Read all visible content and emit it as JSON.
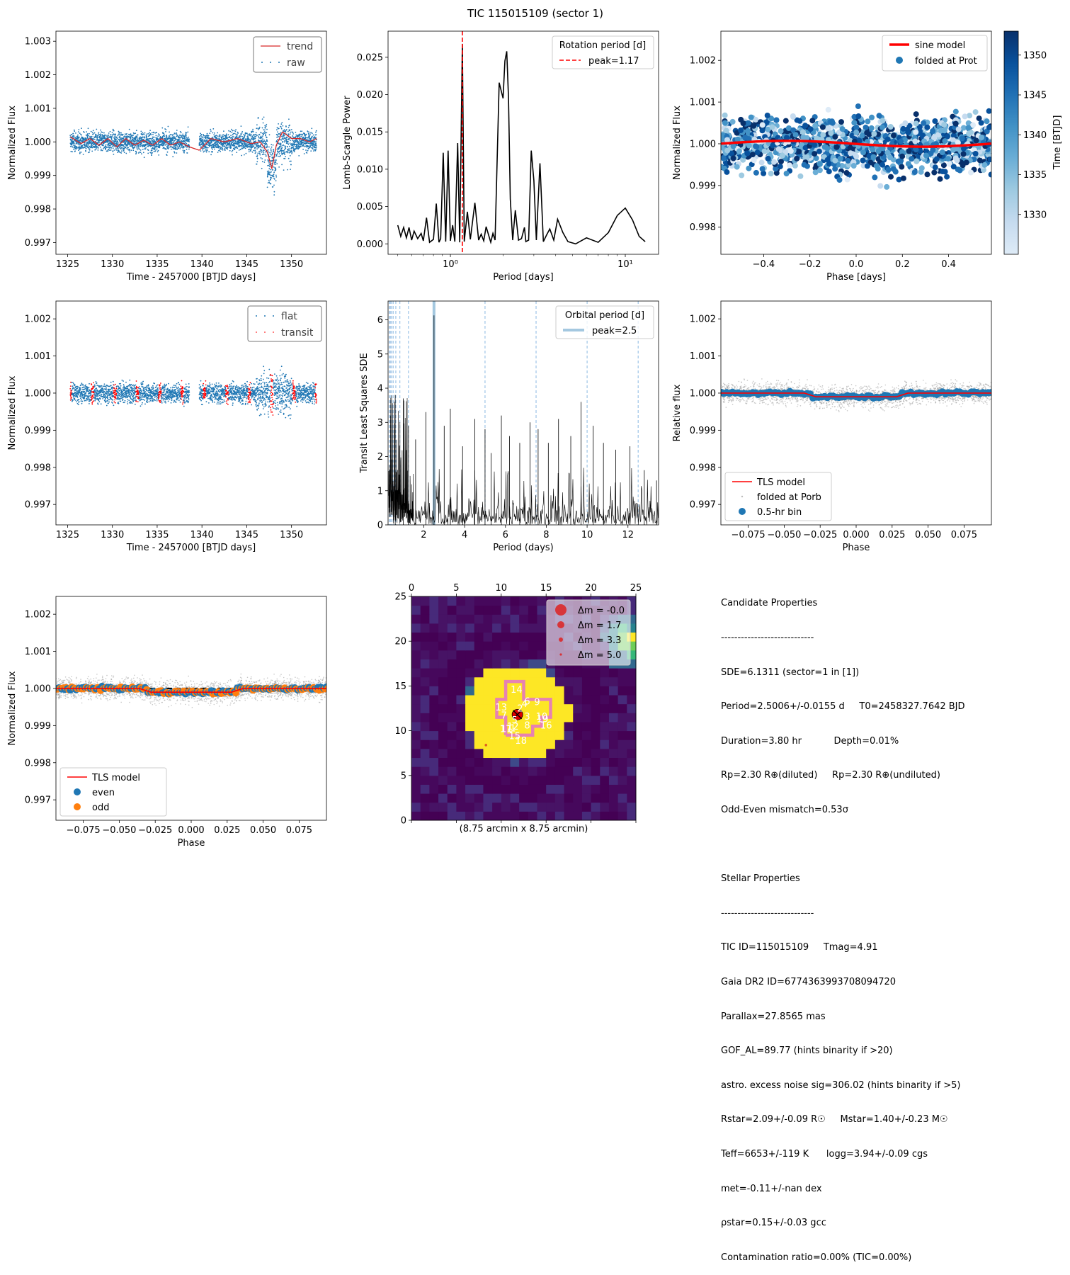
{
  "title": "TIC 115015109 (sector 1)",
  "chart_data": [
    {
      "id": "p1",
      "type": "scatter",
      "xlabel": "Time - 2457000 [BTJD days]",
      "ylabel": "Normalized Flux",
      "xlim": [
        1323.7,
        1353.9
      ],
      "ylim": [
        0.99665,
        1.0033
      ],
      "xticks": [
        1325,
        1330,
        1335,
        1340,
        1345,
        1350
      ],
      "yticks": [
        "0.997",
        "0.998",
        "0.999",
        "1.000",
        "1.001",
        "1.002",
        "1.003"
      ],
      "legend": {
        "position": "top-right",
        "items": [
          "trend",
          "raw"
        ]
      },
      "segments": [
        [
          1325.3,
          1338.6
        ],
        [
          1339.7,
          1352.8
        ]
      ],
      "series": [
        {
          "name": "raw",
          "color": "#1f77b4",
          "scatter": 0.00045
        },
        {
          "name": "trend",
          "color": "#d62728",
          "x": [
            1325.3,
            1326.5,
            1327.5,
            1328.5,
            1329.5,
            1330.5,
            1331.5,
            1332.5,
            1333.5,
            1334.5,
            1335.5,
            1336.5,
            1337.5,
            1338.6,
            1339.7,
            1341.0,
            1342.5,
            1344.0,
            1345.5,
            1346.5,
            1347.3,
            1347.8,
            1348.3,
            1349.0,
            1350.0,
            1351.0,
            1352.0,
            1352.8
          ],
          "y": [
            1.00015,
            0.99995,
            1.0001,
            0.9999,
            1.0001,
            0.99985,
            1.0001,
            0.9999,
            1.00005,
            0.9999,
            1.0001,
            0.9999,
            1.0,
            0.99985,
            0.99975,
            1.0001,
            1.0,
            1.0001,
            0.99995,
            1.0,
            0.9997,
            0.9992,
            0.9999,
            1.0003,
            1.0001,
            1.0001,
            1.0,
            1.0001
          ]
        }
      ]
    },
    {
      "id": "p2",
      "type": "line",
      "xlabel": "Period [days]",
      "ylabel": "Lomb-Scargle Power",
      "xscale": "log",
      "xlim": [
        0.44,
        15.5
      ],
      "ylim": [
        -0.0014,
        0.0285
      ],
      "xticks": [
        {
          "v": 1,
          "label": "10⁰"
        },
        {
          "v": 10,
          "label": "10¹"
        }
      ],
      "yticks": [
        "0.000",
        "0.005",
        "0.010",
        "0.015",
        "0.020",
        "0.025"
      ],
      "legend": {
        "position": "top-right",
        "title": "Rotation period [d]",
        "items": [
          "peak=1.17"
        ]
      },
      "peak": 1.17,
      "series": [
        {
          "name": "power",
          "color": "#000000",
          "x": [
            0.5,
            0.52,
            0.54,
            0.56,
            0.58,
            0.6,
            0.62,
            0.65,
            0.68,
            0.7,
            0.73,
            0.76,
            0.8,
            0.83,
            0.86,
            0.88,
            0.91,
            0.94,
            0.97,
            1.0,
            1.03,
            1.06,
            1.1,
            1.13,
            1.17,
            1.2,
            1.25,
            1.3,
            1.38,
            1.45,
            1.5,
            1.55,
            1.6,
            1.7,
            1.75,
            1.8,
            1.9,
            2.0,
            2.05,
            2.1,
            2.15,
            2.2,
            2.27,
            2.35,
            2.45,
            2.55,
            2.65,
            2.7,
            2.8,
            2.9,
            3.0,
            3.1,
            3.25,
            3.4,
            3.55,
            3.7,
            3.9,
            4.1,
            4.4,
            4.7,
            5.2,
            6.0,
            7.0,
            8.0,
            9.0,
            10.0,
            11.0,
            12.0,
            13.0
          ],
          "y": [
            0.0025,
            0.001,
            0.0022,
            0.0008,
            0.0022,
            0.0005,
            0.0017,
            0.0007,
            0.0014,
            0.0004,
            0.0035,
            0.0002,
            0.0006,
            0.0054,
            0.0002,
            0.0007,
            0.0122,
            0.0003,
            0.0125,
            0.0004,
            0.0025,
            0.0003,
            0.0135,
            0.0002,
            0.0268,
            0.0003,
            0.0043,
            0.0006,
            0.0055,
            0.0005,
            0.0013,
            0.0004,
            0.0023,
            0.0002,
            0.0014,
            0.0005,
            0.0216,
            0.0195,
            0.0245,
            0.0258,
            0.0195,
            0.006,
            0.0005,
            0.0045,
            0.0005,
            0.0007,
            0.0022,
            0.0003,
            0.0005,
            0.0125,
            0.0085,
            0.0005,
            0.0108,
            0.0003,
            0.0012,
            0.002,
            0.0005,
            0.0033,
            0.0015,
            0.0003,
            0.0,
            0.0008,
            0.0002,
            0.0015,
            0.0038,
            0.0048,
            0.0032,
            0.001,
            0.0003
          ]
        }
      ]
    },
    {
      "id": "p3",
      "type": "scatter",
      "xlabel": "Phase [days]",
      "ylabel": "Normalized Flux",
      "xlim": [
        -0.585,
        0.585
      ],
      "ylim": [
        0.99735,
        1.0027
      ],
      "xticks": [
        {
          "v": -0.4,
          "label": "−0.4"
        },
        {
          "v": -0.2,
          "label": "−0.2"
        },
        {
          "v": 0.0,
          "label": "0.0"
        },
        {
          "v": 0.2,
          "label": "0.2"
        },
        {
          "v": 0.4,
          "label": "0.4"
        }
      ],
      "yticks": [
        "0.998",
        "0.999",
        "1.000",
        "1.001",
        "1.002"
      ],
      "legend": {
        "position": "top-right",
        "items": [
          "sine model",
          "folded at Prot"
        ]
      },
      "colorbar": {
        "label": "Time [BTJD]",
        "range": [
          1325,
          1353
        ],
        "ticks": [
          "1330",
          "1335",
          "1340",
          "1345",
          "1350"
        ],
        "cmap": "Blues"
      },
      "series": [
        {
          "name": "folded at Prot",
          "color": "#08306b"
        },
        {
          "name": "sine model",
          "color": "#ff0000",
          "amplitude": 7e-05
        }
      ]
    },
    {
      "id": "p4",
      "type": "scatter",
      "xlabel": "Time - 2457000 [BTJD days]",
      "ylabel": "Normalized Flux",
      "xlim": [
        1323.7,
        1353.9
      ],
      "ylim": [
        0.99645,
        1.00248
      ],
      "xticks": [
        1325,
        1330,
        1335,
        1340,
        1345,
        1350
      ],
      "yticks": [
        "0.997",
        "0.998",
        "0.999",
        "1.000",
        "1.001",
        "1.002"
      ],
      "legend": {
        "position": "top-right",
        "items": [
          "flat",
          "transit"
        ]
      },
      "transit_times": [
        1325.3,
        1327.8,
        1330.3,
        1332.8,
        1335.3,
        1337.8,
        1340.3,
        1342.8,
        1345.3,
        1347.8,
        1350.3,
        1352.8
      ],
      "series": [
        {
          "name": "flat",
          "color": "#1f77b4"
        },
        {
          "name": "transit",
          "color": "#ff0000"
        }
      ]
    },
    {
      "id": "p5",
      "type": "line",
      "xlabel": "Period (days)",
      "ylabel": "Transit Least Squares SDE",
      "xlim": [
        0.25,
        13.5
      ],
      "ylim": [
        0,
        6.55
      ],
      "xticks": [
        2,
        4,
        6,
        8,
        10,
        12
      ],
      "yticks": [
        0,
        1,
        2,
        3,
        4,
        5,
        6
      ],
      "legend": {
        "position": "top-right",
        "title": "Orbital period [d]",
        "items": [
          "peak=2.5"
        ]
      },
      "peak": 2.5,
      "peak_sde": 6.13,
      "harmonics": [
        0.31,
        0.36,
        0.42,
        0.5,
        0.63,
        0.83,
        1.25,
        5.0,
        7.5,
        10.0,
        12.5
      ],
      "spikes": {
        "x": [
          0.6,
          1.0,
          1.25,
          1.6,
          2.1,
          2.5,
          3.0,
          3.3,
          3.9,
          4.5,
          5.0,
          5.3,
          5.8,
          6.2,
          6.7,
          7.2,
          7.6,
          8.1,
          8.6,
          9.2,
          9.7,
          10.3,
          10.8,
          11.4,
          12.1,
          12.8,
          13.4
        ],
        "y": [
          3.8,
          3.7,
          2.9,
          2.5,
          3.3,
          6.13,
          2.9,
          3.4,
          2.3,
          3.1,
          2.8,
          2.1,
          3.2,
          2.6,
          2.4,
          3.0,
          2.8,
          2.4,
          3.1,
          2.6,
          3.6,
          2.9,
          2.4,
          2.2,
          2.3,
          1.6,
          1.3
        ]
      },
      "series": [
        {
          "name": "SDE",
          "color": "#000000"
        }
      ]
    },
    {
      "id": "p6",
      "type": "scatter",
      "xlabel": "Phase",
      "ylabel": "Relative flux",
      "xlim": [
        -0.094,
        0.094
      ],
      "ylim": [
        0.99645,
        1.00248
      ],
      "xticks": [
        {
          "v": -0.075,
          "label": "−0.075"
        },
        {
          "v": -0.05,
          "label": "−0.050"
        },
        {
          "v": -0.025,
          "label": "−0.025"
        },
        {
          "v": 0.0,
          "label": "0.000"
        },
        {
          "v": 0.025,
          "label": "0.025"
        },
        {
          "v": 0.05,
          "label": "0.050"
        },
        {
          "v": 0.075,
          "label": "0.075"
        }
      ],
      "yticks": [
        "0.997",
        "0.998",
        "0.999",
        "1.000",
        "1.001",
        "1.002"
      ],
      "legend": {
        "position": "bottom-left",
        "items": [
          "TLS model",
          "folded at Porb",
          "0.5-hr bin"
        ]
      },
      "transit": {
        "start": -0.032,
        "end": 0.032,
        "depth": 0.0001
      },
      "series": [
        {
          "name": "TLS model",
          "color": "#ff0000"
        },
        {
          "name": "folded at Porb",
          "color": "#7f7f7f"
        },
        {
          "name": "0.5-hr bin",
          "color": "#1f77b4"
        }
      ]
    },
    {
      "id": "p7",
      "type": "scatter",
      "xlabel": "Phase",
      "ylabel": "Normalized Flux",
      "xlim": [
        -0.094,
        0.094
      ],
      "ylim": [
        0.99645,
        1.00248
      ],
      "xticks": [
        {
          "v": -0.075,
          "label": "−0.075"
        },
        {
          "v": -0.05,
          "label": "−0.050"
        },
        {
          "v": -0.025,
          "label": "−0.025"
        },
        {
          "v": 0.0,
          "label": "0.000"
        },
        {
          "v": 0.025,
          "label": "0.025"
        },
        {
          "v": 0.05,
          "label": "0.050"
        },
        {
          "v": 0.075,
          "label": "0.075"
        }
      ],
      "yticks": [
        "0.997",
        "0.998",
        "0.999",
        "1.000",
        "1.001",
        "1.002"
      ],
      "legend": {
        "position": "bottom-left",
        "items": [
          "TLS model",
          "even",
          "odd"
        ]
      },
      "transit": {
        "start": -0.032,
        "end": 0.032,
        "depth": 0.0001
      },
      "series": [
        {
          "name": "TLS model",
          "color": "#ff0000"
        },
        {
          "name": "even",
          "color": "#1f77b4"
        },
        {
          "name": "odd",
          "color": "#ff7f0e"
        }
      ]
    },
    {
      "id": "p8",
      "type": "heatmap",
      "xlabel": "(8.75 arcmin x 8.75 arcmin)",
      "xlim": [
        0,
        25
      ],
      "ylim": [
        0,
        25
      ],
      "xticks": [
        0,
        5,
        10,
        15,
        20,
        25
      ],
      "yticks": [
        0,
        5,
        10,
        15,
        20,
        25
      ],
      "legend": {
        "position": "top-right",
        "items": [
          "Δm = -0.0",
          "Δm = 1.7",
          "Δm = 3.3",
          "Δm = 5.0"
        ]
      },
      "target": [
        11.8,
        11.8
      ],
      "stars": [
        {
          "label": "1",
          "x": 11.3,
          "y": 10.3
        },
        {
          "label": "2",
          "x": 12.1,
          "y": 12.5
        },
        {
          "label": "3",
          "x": 12.9,
          "y": 11.6
        },
        {
          "label": "4",
          "x": 12.6,
          "y": 13.0
        },
        {
          "label": "5",
          "x": 11.5,
          "y": 11.2
        },
        {
          "label": "6",
          "x": 12.9,
          "y": 13.3
        },
        {
          "label": "7",
          "x": 10.3,
          "y": 11.7
        },
        {
          "label": "8",
          "x": 12.9,
          "y": 10.6
        },
        {
          "label": "9",
          "x": 14.0,
          "y": 13.2
        },
        {
          "label": "10",
          "x": 14.5,
          "y": 11.6
        },
        {
          "label": "11",
          "x": 10.6,
          "y": 10.2
        },
        {
          "label": "12",
          "x": 11.3,
          "y": 10.5
        },
        {
          "label": "13",
          "x": 10.0,
          "y": 12.6
        },
        {
          "label": "14",
          "x": 11.7,
          "y": 14.6
        },
        {
          "label": "15",
          "x": 11.5,
          "y": 9.4
        },
        {
          "label": "16",
          "x": 15.0,
          "y": 10.6
        },
        {
          "label": "17",
          "x": 10.5,
          "y": 10.2
        },
        {
          "label": "18",
          "x": 12.2,
          "y": 8.9
        },
        {
          "label": "19",
          "x": 14.6,
          "y": 11.3
        }
      ],
      "aperture": [
        [
          10.5,
          9.5
        ],
        [
          10.5,
          11.5
        ],
        [
          9.5,
          11.5
        ],
        [
          9.5,
          13.5
        ],
        [
          10.5,
          13.5
        ],
        [
          10.5,
          15.5
        ],
        [
          12.5,
          15.5
        ],
        [
          12.5,
          13.5
        ],
        [
          15.5,
          13.5
        ],
        [
          15.5,
          11.5
        ],
        [
          14.5,
          11.5
        ],
        [
          14.5,
          10.5
        ],
        [
          13.5,
          10.5
        ],
        [
          13.5,
          9.5
        ],
        [
          10.5,
          9.5
        ]
      ],
      "faint_stars": [
        [
          8.3,
          8.4
        ]
      ]
    }
  ],
  "candidate": {
    "heading": "Candidate Properties",
    "rule": "----------------------------",
    "lines": [
      "SDE=6.1311 (sector=1 in [1])",
      "Period=2.5006+/-0.0155 d     T0=2458327.7642 BJD",
      "Duration=3.80 hr           Depth=0.01%",
      "Rp=2.30 R⊕(diluted)     Rp=2.30 R⊕(undiluted)",
      "Odd-Even mismatch=0.53σ"
    ]
  },
  "stellar": {
    "heading": "Stellar Properties",
    "rule": "----------------------------",
    "lines": [
      "TIC ID=115015109     Tmag=4.91",
      "Gaia DR2 ID=6774363993708094720",
      "Parallax=27.8565 mas",
      "GOF_AL=89.77 (hints binarity if >20)",
      "astro. excess noise sig=306.02 (hints binarity if >5)",
      "Rstar=2.09+/-0.09 R☉     Mstar=1.40+/-0.23 M☉",
      "Teff=6653+/-119 K      logg=3.94+/-0.09 cgs",
      "met=-0.11+/-nan dex",
      "ρstar=0.15+/-0.03 gcc",
      "Contamination ratio=0.00% (TIC=0.00%)"
    ]
  }
}
